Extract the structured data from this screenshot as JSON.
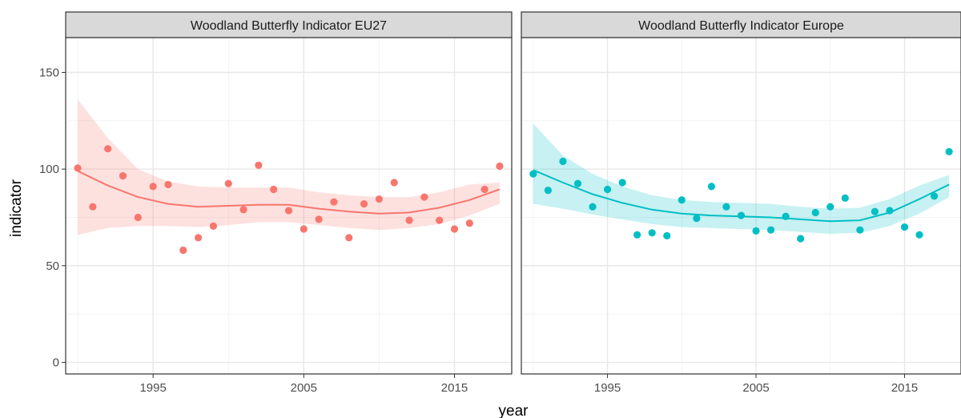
{
  "chart_data": {
    "type": "scatter",
    "xlabel": "year",
    "ylabel": "indicator",
    "xlim": [
      1989.2,
      2018.8
    ],
    "ylim": [
      -6,
      168
    ],
    "x_ticks": [
      1995,
      2005,
      2015
    ],
    "x_tick_labels": [
      "1995",
      "2005",
      "2015"
    ],
    "y_ticks": [
      0,
      50,
      100,
      150
    ],
    "y_tick_labels": [
      "0",
      "50",
      "100",
      "150"
    ],
    "grid": true,
    "legend": "none",
    "panels": [
      {
        "title": "Woodland Butterfly Indicator EU27",
        "color": "#F8766D",
        "points": [
          {
            "x": 1990,
            "y": 100.5
          },
          {
            "x": 1991,
            "y": 80.5
          },
          {
            "x": 1992,
            "y": 110.5
          },
          {
            "x": 1993,
            "y": 96.5
          },
          {
            "x": 1994,
            "y": 75
          },
          {
            "x": 1995,
            "y": 91
          },
          {
            "x": 1996,
            "y": 92
          },
          {
            "x": 1997,
            "y": 58
          },
          {
            "x": 1998,
            "y": 64.5
          },
          {
            "x": 1999,
            "y": 70.5
          },
          {
            "x": 2000,
            "y": 92.5
          },
          {
            "x": 2001,
            "y": 79
          },
          {
            "x": 2002,
            "y": 102
          },
          {
            "x": 2003,
            "y": 89.5
          },
          {
            "x": 2004,
            "y": 78.5
          },
          {
            "x": 2005,
            "y": 69
          },
          {
            "x": 2006,
            "y": 74
          },
          {
            "x": 2007,
            "y": 83
          },
          {
            "x": 2008,
            "y": 64.5
          },
          {
            "x": 2009,
            "y": 82
          },
          {
            "x": 2010,
            "y": 84.5
          },
          {
            "x": 2011,
            "y": 93
          },
          {
            "x": 2012,
            "y": 73.5
          },
          {
            "x": 2013,
            "y": 85.5
          },
          {
            "x": 2014,
            "y": 73.5
          },
          {
            "x": 2015,
            "y": 69
          },
          {
            "x": 2016,
            "y": 72
          },
          {
            "x": 2017,
            "y": 89.5
          },
          {
            "x": 2018,
            "y": 101.5
          }
        ],
        "smooth": [
          {
            "x": 1990,
            "y": 99,
            "lo": 66,
            "hi": 136
          },
          {
            "x": 1992,
            "y": 91.5,
            "lo": 69.5,
            "hi": 116
          },
          {
            "x": 1994,
            "y": 85.5,
            "lo": 70.5,
            "hi": 100
          },
          {
            "x": 1996,
            "y": 82,
            "lo": 70.5,
            "hi": 93.5
          },
          {
            "x": 1998,
            "y": 80.5,
            "lo": 70,
            "hi": 91
          },
          {
            "x": 2000,
            "y": 81,
            "lo": 71,
            "hi": 90.5
          },
          {
            "x": 2002,
            "y": 81.5,
            "lo": 72.5,
            "hi": 90.5
          },
          {
            "x": 2004,
            "y": 81.5,
            "lo": 72.5,
            "hi": 90.5
          },
          {
            "x": 2006,
            "y": 79.5,
            "lo": 71,
            "hi": 88
          },
          {
            "x": 2008,
            "y": 78,
            "lo": 69.5,
            "hi": 86.5
          },
          {
            "x": 2010,
            "y": 77,
            "lo": 68.5,
            "hi": 85.5
          },
          {
            "x": 2012,
            "y": 77.5,
            "lo": 69.5,
            "hi": 85.5
          },
          {
            "x": 2014,
            "y": 80,
            "lo": 71.5,
            "hi": 88
          },
          {
            "x": 2016,
            "y": 84,
            "lo": 76,
            "hi": 92
          },
          {
            "x": 2018,
            "y": 89.5,
            "lo": 82,
            "hi": 93
          }
        ]
      },
      {
        "title": "Woodland Butterfly Indicator Europe",
        "color": "#00BFC4",
        "points": [
          {
            "x": 1990,
            "y": 97.5
          },
          {
            "x": 1991,
            "y": 89
          },
          {
            "x": 1992,
            "y": 104
          },
          {
            "x": 1993,
            "y": 92.5
          },
          {
            "x": 1994,
            "y": 80.5
          },
          {
            "x": 1995,
            "y": 89.5
          },
          {
            "x": 1996,
            "y": 93
          },
          {
            "x": 1997,
            "y": 66
          },
          {
            "x": 1998,
            "y": 67
          },
          {
            "x": 1999,
            "y": 65.5
          },
          {
            "x": 2000,
            "y": 84
          },
          {
            "x": 2001,
            "y": 74.5
          },
          {
            "x": 2002,
            "y": 91
          },
          {
            "x": 2003,
            "y": 80.5
          },
          {
            "x": 2004,
            "y": 76
          },
          {
            "x": 2005,
            "y": 68
          },
          {
            "x": 2006,
            "y": 68.5
          },
          {
            "x": 2007,
            "y": 75.5
          },
          {
            "x": 2008,
            "y": 64
          },
          {
            "x": 2009,
            "y": 77.5
          },
          {
            "x": 2010,
            "y": 80.5
          },
          {
            "x": 2011,
            "y": 85
          },
          {
            "x": 2012,
            "y": 68.5
          },
          {
            "x": 2013,
            "y": 78
          },
          {
            "x": 2014,
            "y": 78.5
          },
          {
            "x": 2015,
            "y": 70
          },
          {
            "x": 2016,
            "y": 66
          },
          {
            "x": 2017,
            "y": 86
          },
          {
            "x": 2018,
            "y": 109
          }
        ],
        "smooth": [
          {
            "x": 1990,
            "y": 99.5,
            "lo": 82,
            "hi": 123.5
          },
          {
            "x": 1992,
            "y": 93,
            "lo": 79.5,
            "hi": 107
          },
          {
            "x": 1994,
            "y": 87,
            "lo": 76.5,
            "hi": 97.5
          },
          {
            "x": 1996,
            "y": 82.5,
            "lo": 74,
            "hi": 91
          },
          {
            "x": 1998,
            "y": 79,
            "lo": 71.5,
            "hi": 86.5
          },
          {
            "x": 2000,
            "y": 77,
            "lo": 70,
            "hi": 84
          },
          {
            "x": 2002,
            "y": 76,
            "lo": 69.5,
            "hi": 83
          },
          {
            "x": 2004,
            "y": 75.5,
            "lo": 69,
            "hi": 82.5
          },
          {
            "x": 2006,
            "y": 75,
            "lo": 68.5,
            "hi": 82
          },
          {
            "x": 2008,
            "y": 74,
            "lo": 67.5,
            "hi": 80.5
          },
          {
            "x": 2010,
            "y": 73,
            "lo": 66.5,
            "hi": 79.5
          },
          {
            "x": 2012,
            "y": 73.5,
            "lo": 67,
            "hi": 80
          },
          {
            "x": 2014,
            "y": 77.5,
            "lo": 70.5,
            "hi": 84.5
          },
          {
            "x": 2016,
            "y": 84.5,
            "lo": 77,
            "hi": 91.5
          },
          {
            "x": 2018,
            "y": 92,
            "lo": 85.5,
            "hi": 97
          }
        ]
      }
    ]
  }
}
